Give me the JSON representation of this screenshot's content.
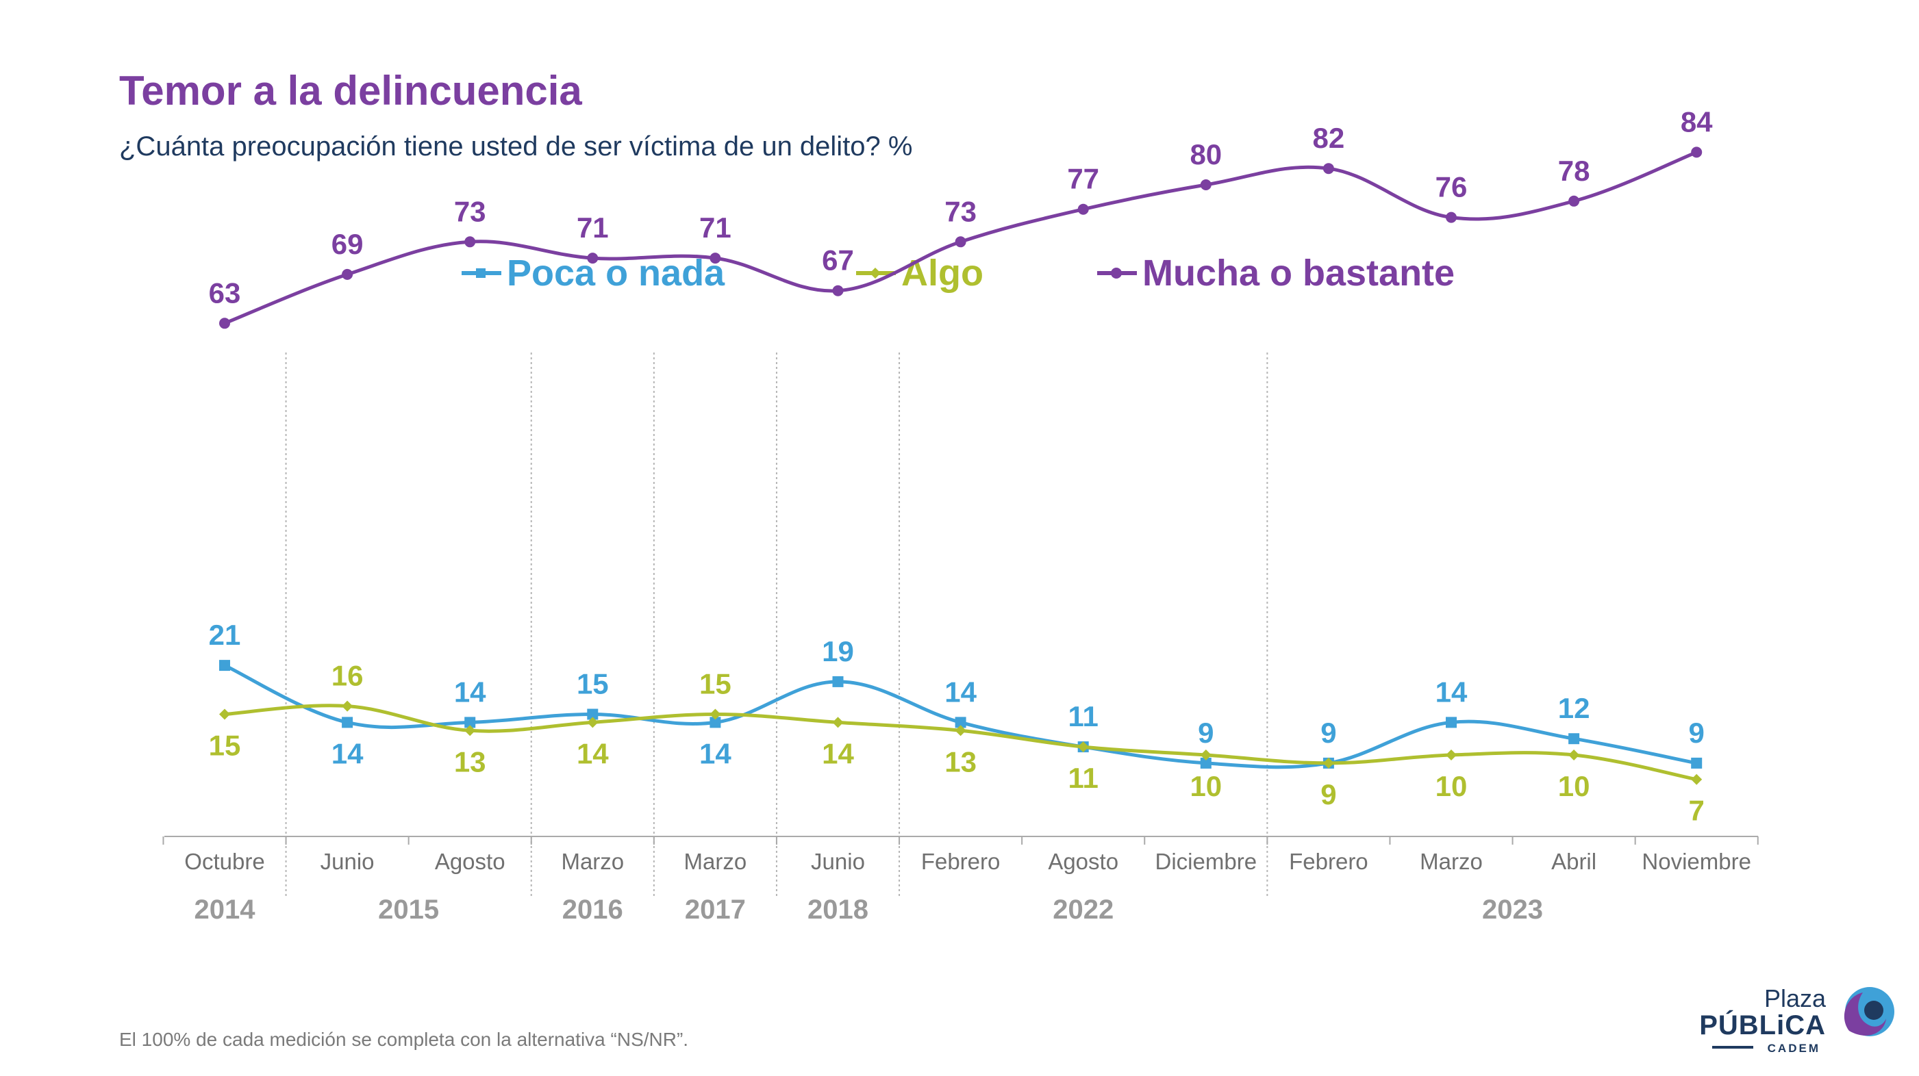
{
  "title": "Temor a la delincuencia",
  "subtitle": "¿Cuánta preocupación tiene usted de ser víctima de un delito? %",
  "footnote": "El 100% de cada medición se completa con la alternativa “NS/NR”.",
  "logo": {
    "line1": "Plaza",
    "line2": "PÚBLiCA",
    "line3": "CADEM"
  },
  "colors": {
    "poca": "#3fa1d8",
    "algo": "#afbf2f",
    "mucha": "#7b3fa0",
    "year": "#999999",
    "axis": "#aaaaaa"
  },
  "chart_data": {
    "type": "line",
    "legend_position": "top-center",
    "grid": false,
    "ylim": [
      0,
      100
    ],
    "categories": [
      "Octubre",
      "Junio",
      "Agosto",
      "Marzo",
      "Marzo",
      "Junio",
      "Febrero",
      "Agosto",
      "Diciembre",
      "Febrero",
      "Marzo",
      "Abril",
      "Noviembre"
    ],
    "years": [
      {
        "label": "2014",
        "start": 0,
        "end": 0
      },
      {
        "label": "2015",
        "start": 1,
        "end": 2
      },
      {
        "label": "2016",
        "start": 3,
        "end": 3
      },
      {
        "label": "2017",
        "start": 4,
        "end": 4
      },
      {
        "label": "2018",
        "start": 5,
        "end": 5
      },
      {
        "label": "2022",
        "start": 6,
        "end": 8
      },
      {
        "label": "2023",
        "start": 9,
        "end": 12
      }
    ],
    "separators_after": [
      0,
      2,
      3,
      4,
      5,
      8
    ],
    "series": [
      {
        "key": "poca",
        "name": "Poca o nada",
        "marker": "square",
        "values": [
          21,
          14,
          14,
          15,
          14,
          19,
          14,
          11,
          9,
          9,
          14,
          12,
          9
        ],
        "label_pos": [
          "above",
          "below",
          "above",
          "above",
          "below",
          "above",
          "above",
          "above",
          "above",
          "above",
          "above",
          "above",
          "above"
        ]
      },
      {
        "key": "algo",
        "name": "Algo",
        "marker": "diamond",
        "values": [
          15,
          16,
          13,
          14,
          15,
          14,
          13,
          11,
          10,
          9,
          10,
          10,
          7
        ],
        "label_pos": [
          "below",
          "above",
          "below",
          "below",
          "above",
          "below",
          "below",
          "below",
          "below",
          "below",
          "below",
          "below",
          "below"
        ]
      },
      {
        "key": "mucha",
        "name": "Mucha o bastante",
        "marker": "circle",
        "values": [
          63,
          69,
          73,
          71,
          71,
          67,
          73,
          77,
          80,
          82,
          76,
          78,
          84
        ],
        "label_pos": [
          "above",
          "above",
          "above",
          "above",
          "above",
          "above",
          "above",
          "above",
          "above",
          "above",
          "above",
          "above",
          "above"
        ]
      }
    ]
  }
}
